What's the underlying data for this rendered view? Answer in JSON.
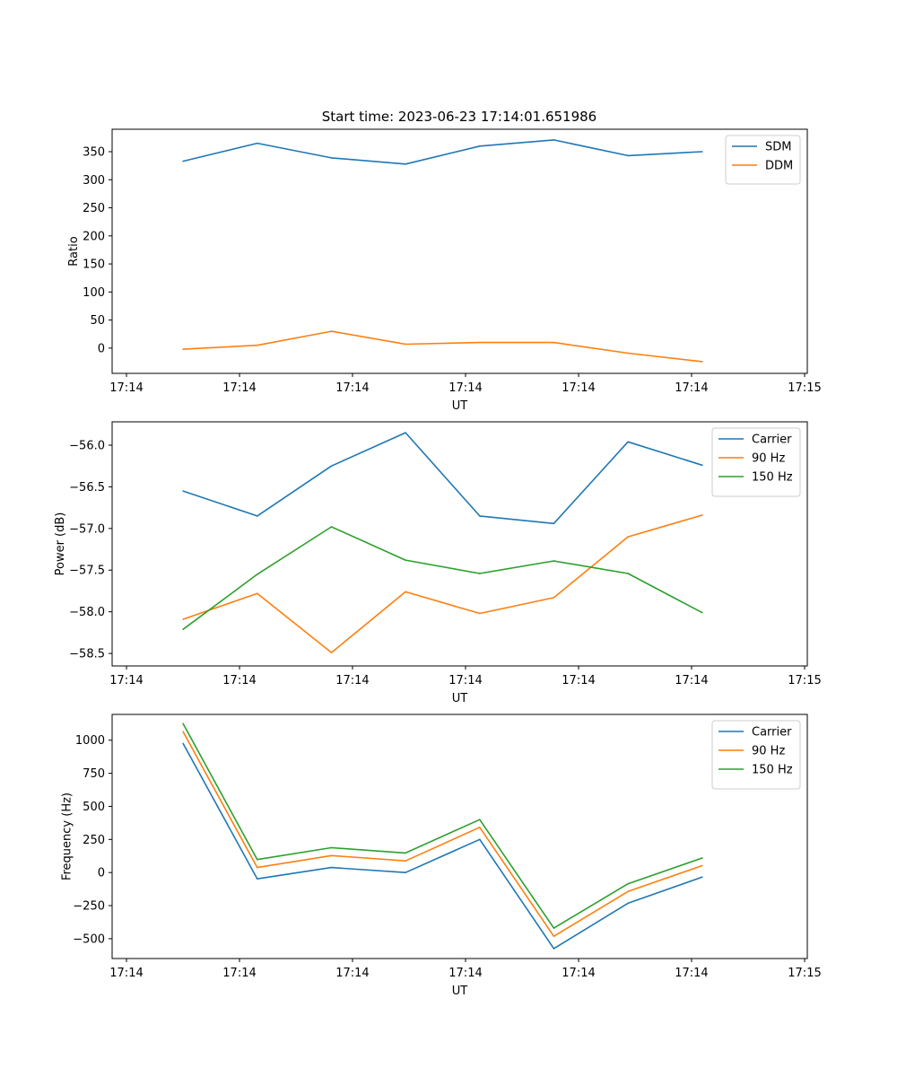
{
  "title": "Start time: 2023-06-23 17:14:01.651986",
  "chart_data": [
    {
      "type": "line",
      "xlabel": "UT",
      "ylabel": "Ratio",
      "x_tick_labels": [
        "17:14",
        "17:14",
        "17:14",
        "17:14",
        "17:14",
        "17:14",
        "17:15"
      ],
      "x_tick_fractions": [
        0,
        0.1667,
        0.3333,
        0.5,
        0.6667,
        0.8333,
        1
      ],
      "x_fractions": [
        0.0835,
        0.1928,
        0.3022,
        0.4115,
        0.5209,
        0.6302,
        0.7396,
        0.849
      ],
      "ylim": [
        -45,
        390
      ],
      "yticks": [
        0,
        50,
        100,
        150,
        200,
        250,
        300,
        350
      ],
      "grid": false,
      "legend": "top-right",
      "series": [
        {
          "name": "SDM",
          "color": "#1f77b4",
          "values": [
            333,
            365,
            339,
            328,
            360,
            371,
            343,
            350
          ]
        },
        {
          "name": "DDM",
          "color": "#ff7f0e",
          "values": [
            -2,
            5,
            30,
            7,
            10,
            10,
            -9,
            -24
          ]
        }
      ]
    },
    {
      "type": "line",
      "xlabel": "UT",
      "ylabel": "Power (dB)",
      "x_tick_labels": [
        "17:14",
        "17:14",
        "17:14",
        "17:14",
        "17:14",
        "17:14",
        "17:15"
      ],
      "x_tick_fractions": [
        0,
        0.1667,
        0.3333,
        0.5,
        0.6667,
        0.8333,
        1
      ],
      "x_fractions": [
        0.0835,
        0.1928,
        0.3022,
        0.4115,
        0.5209,
        0.6302,
        0.7396,
        0.849
      ],
      "ylim": [
        -58.65,
        -55.72
      ],
      "yticks": [
        -58.5,
        -58.0,
        -57.5,
        -57.0,
        -56.5,
        -56.0
      ],
      "ytick_labels": [
        "−58.5",
        "−58.0",
        "−57.5",
        "−57.0",
        "−56.5",
        "−56.0"
      ],
      "grid": false,
      "legend": "top-right",
      "series": [
        {
          "name": "Carrier",
          "color": "#1f77b4",
          "values": [
            -56.55,
            -56.85,
            -56.25,
            -55.85,
            -56.85,
            -56.94,
            -55.96,
            -56.24
          ]
        },
        {
          "name": "90 Hz",
          "color": "#ff7f0e",
          "values": [
            -58.09,
            -57.78,
            -58.49,
            -57.76,
            -58.02,
            -57.83,
            -57.1,
            -56.84
          ]
        },
        {
          "name": "150 Hz",
          "color": "#2ca02c",
          "values": [
            -58.21,
            -57.55,
            -56.98,
            -57.38,
            -57.54,
            -57.39,
            -57.54,
            -58.01
          ]
        }
      ]
    },
    {
      "type": "line",
      "xlabel": "UT",
      "ylabel": "Frequency (Hz)",
      "x_tick_labels": [
        "17:14",
        "17:14",
        "17:14",
        "17:14",
        "17:14",
        "17:14",
        "17:15"
      ],
      "x_tick_fractions": [
        0,
        0.1667,
        0.3333,
        0.5,
        0.6667,
        0.8333,
        1
      ],
      "x_fractions": [
        0.0835,
        0.1928,
        0.3022,
        0.4115,
        0.5209,
        0.6302,
        0.7396,
        0.849
      ],
      "ylim": [
        -650,
        1195
      ],
      "yticks": [
        -500,
        -250,
        0,
        250,
        500,
        750,
        1000
      ],
      "ytick_labels": [
        "−500",
        "−250",
        "0",
        "250",
        "500",
        "750",
        "1000"
      ],
      "grid": false,
      "legend": "top-right",
      "series": [
        {
          "name": "Carrier",
          "color": "#1f77b4",
          "values": [
            975,
            -48,
            38,
            0,
            250,
            -575,
            -232,
            -35
          ]
        },
        {
          "name": "90 Hz",
          "color": "#ff7f0e",
          "values": [
            1065,
            38,
            128,
            88,
            342,
            -482,
            -143,
            52
          ]
        },
        {
          "name": "150 Hz",
          "color": "#2ca02c",
          "values": [
            1125,
            98,
            188,
            148,
            400,
            -420,
            -85,
            110
          ]
        }
      ]
    }
  ]
}
